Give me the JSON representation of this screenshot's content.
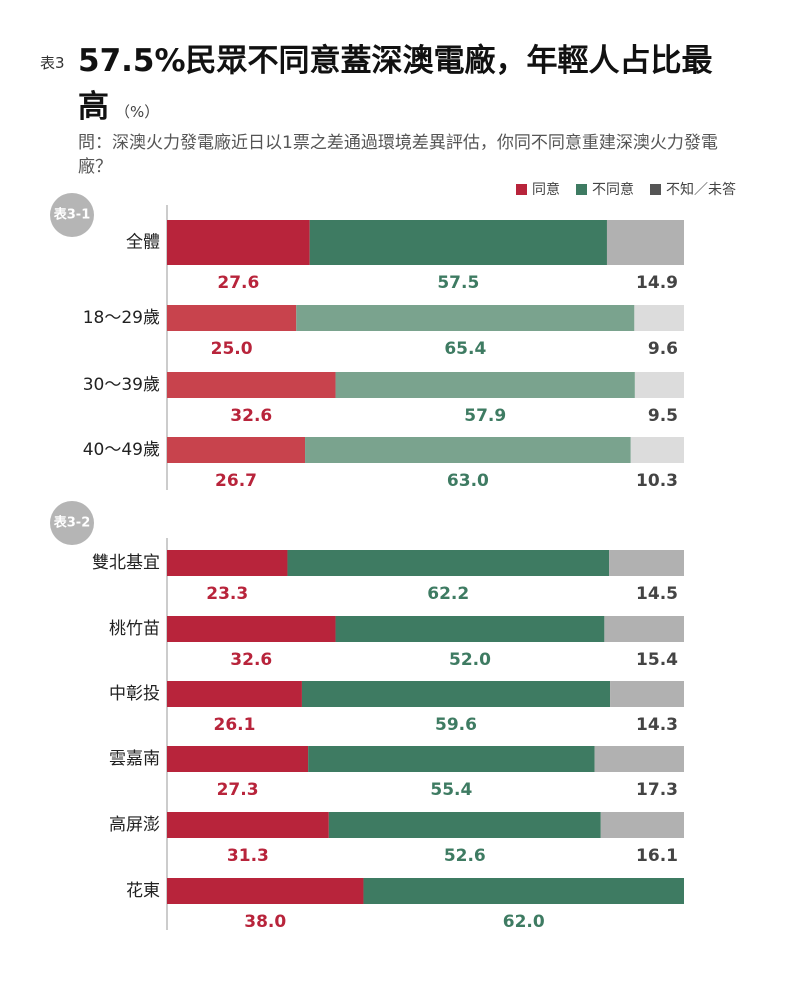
{
  "chart_data": {
    "type": "bar",
    "stacked": true,
    "horizontal": true,
    "label": "表3",
    "title": "57.5%民眾不同意蓋深澳電廠，年輕人占比最高",
    "unit": "（%）",
    "subtitle": "問：深澳火力發電廠近日以1票之差通過環境差異評估，你同不同意重建深澳火力發電廠？",
    "xlim": [
      0,
      100
    ],
    "legend": [
      {
        "name": "同意",
        "color": "#b8243b"
      },
      {
        "name": "不同意",
        "color": "#3e7b62"
      },
      {
        "name": "不知／未答",
        "color": "#555555"
      }
    ],
    "panels": [
      {
        "label": "表3-1",
        "categories": [
          "全體",
          "18〜29歲",
          "30〜39歲",
          "40〜49歲"
        ],
        "series": [
          {
            "values": [
              27.6,
              25.0,
              32.6,
              26.7
            ],
            "value_labels": [
              "27.6",
              "25.0",
              "32.6",
              "26.7"
            ],
            "colors": [
              "#b8243b",
              "#c8434d",
              "#c8434d",
              "#c8434d"
            ]
          },
          {
            "values": [
              57.5,
              65.4,
              57.9,
              63.0
            ],
            "value_labels": [
              "57.5",
              "65.4",
              "57.9",
              "63.0"
            ],
            "colors": [
              "#3e7b62",
              "#7aa38e",
              "#7aa38e",
              "#7aa38e"
            ]
          },
          {
            "values": [
              14.9,
              9.6,
              9.5,
              10.3
            ],
            "value_labels": [
              "14.9",
              "9.6",
              "9.5",
              "10.3"
            ],
            "colors": [
              "#b1b1b1",
              "#dcdcdc",
              "#dcdcdc",
              "#dcdcdc"
            ]
          }
        ]
      },
      {
        "label": "表3-2",
        "categories": [
          "雙北基宜",
          "桃竹苗",
          "中彰投",
          "雲嘉南",
          "高屏澎",
          "花東"
        ],
        "series": [
          {
            "values": [
              23.3,
              32.6,
              26.1,
              27.3,
              31.3,
              38.0
            ],
            "value_labels": [
              "23.3",
              "32.6",
              "26.1",
              "27.3",
              "31.3",
              "38.0"
            ],
            "colors": [
              "#b8243b",
              "#b8243b",
              "#b8243b",
              "#b8243b",
              "#b8243b",
              "#b8243b"
            ]
          },
          {
            "values": [
              62.2,
              52.0,
              59.6,
              55.4,
              52.6,
              62.0
            ],
            "value_labels": [
              "62.2",
              "52.0",
              "59.6",
              "55.4",
              "52.6",
              "62.0"
            ],
            "colors": [
              "#3e7b62",
              "#3e7b62",
              "#3e7b62",
              "#3e7b62",
              "#3e7b62",
              "#3e7b62"
            ]
          },
          {
            "values": [
              14.5,
              15.4,
              14.3,
              17.3,
              16.1,
              0
            ],
            "value_labels": [
              "14.5",
              "15.4",
              "14.3",
              "17.3",
              "16.1",
              null
            ],
            "colors": [
              "#b1b1b1",
              "#b1b1b1",
              "#b1b1b1",
              "#b1b1b1",
              "#b1b1b1",
              "#b1b1b1"
            ]
          }
        ]
      }
    ]
  }
}
